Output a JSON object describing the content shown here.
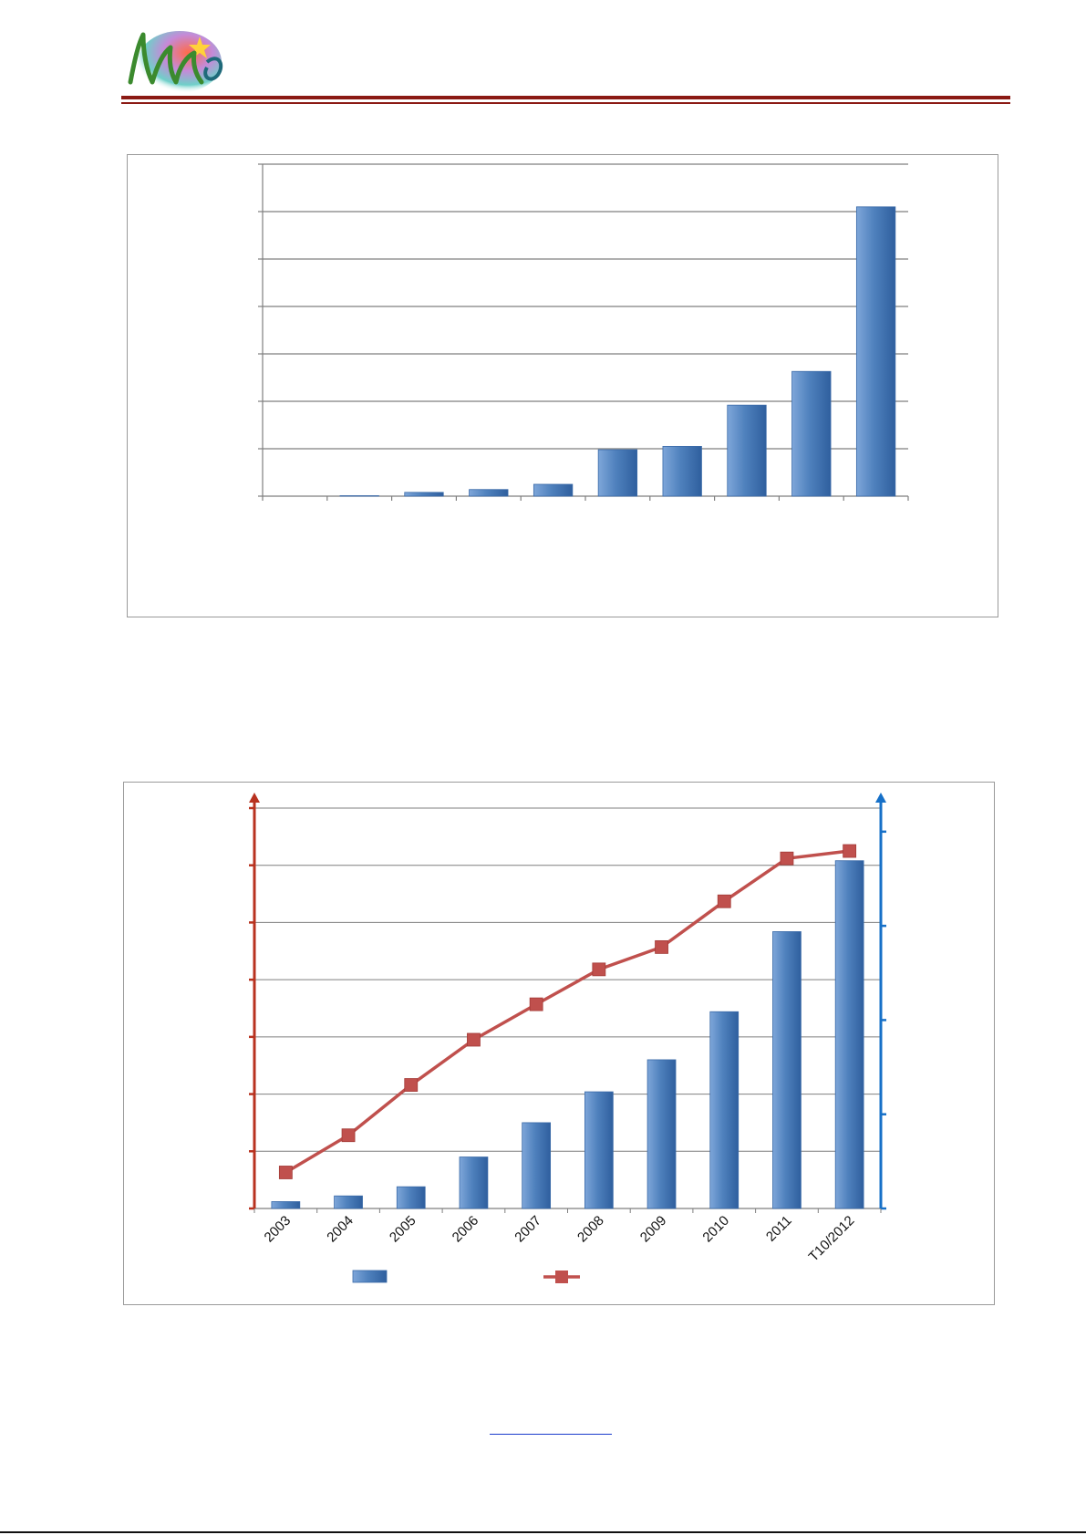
{
  "colors": {
    "header_rule": "#8b1a14",
    "bar_fill": "#4f81bd",
    "line_series": "#c0504d",
    "left_axis": "#b8321f",
    "right_axis": "#1670c8",
    "gridline": "#7f7f7f",
    "panel_border": "#9a9a9a",
    "link": "#1a3ccc"
  },
  "header": {
    "logo_icon": "logo-emblem-icon"
  },
  "footer": {
    "link_text": ""
  },
  "chart_data": [
    {
      "type": "bar",
      "categories": [
        "",
        "",
        "",
        "",
        "",
        "",
        "",
        "",
        "",
        ""
      ],
      "values": [
        0,
        0.1,
        0.8,
        1.4,
        2.5,
        9.8,
        10.5,
        19.2,
        26.3,
        61
      ],
      "ylim": [
        0,
        70
      ],
      "grid": true,
      "legend": "none"
    },
    {
      "type": "bar",
      "categories": [
        "2003",
        "2004",
        "2005",
        "2006",
        "2007",
        "2008",
        "2009",
        "2010",
        "2011",
        "T10/2012"
      ],
      "series": [
        {
          "type": "bar",
          "axis": "right",
          "values": [
            0.3,
            0.55,
            0.95,
            2.25,
            3.75,
            5.1,
            6.5,
            8.6,
            12.1,
            15.2
          ]
        },
        {
          "type": "line",
          "axis": "left",
          "values": [
            6.3,
            12.8,
            21.6,
            29.5,
            35.7,
            41.8,
            45.7,
            53.7,
            61.2,
            62.5
          ]
        }
      ],
      "ylim_left": [
        0,
        70
      ],
      "ylim_right": [
        0,
        17.5
      ],
      "grid": true,
      "legend": "bottom"
    }
  ]
}
